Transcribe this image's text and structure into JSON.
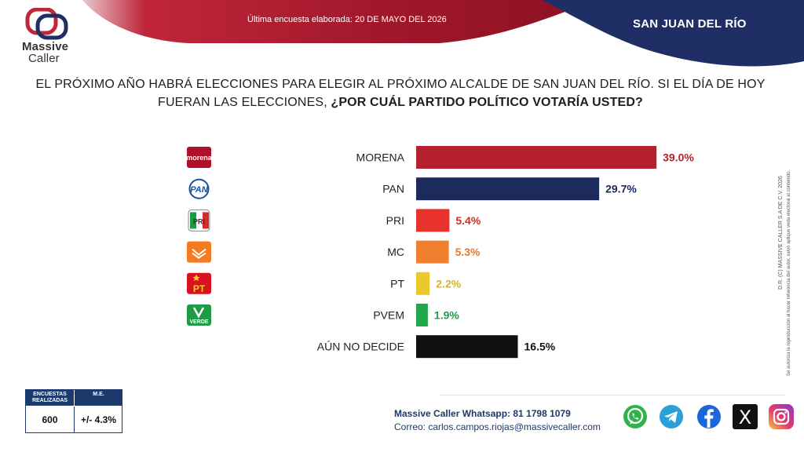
{
  "header": {
    "date_text": "Última encuesta elaborada: 20 DE MAYO DEL 2026",
    "city": "SAN JUAN DEL RÍO"
  },
  "logo": {
    "line1": "Massive",
    "line2": "Caller"
  },
  "question": {
    "part1": "EL PRÓXIMO AÑO HABRÁ ELECCIONES PARA ELEGIR AL PRÓXIMO ALCALDE DE SAN JUAN DEL RÍO. SI EL DÍA DE HOY FUERAN LAS ELECCIONES, ",
    "part2": "¿POR CUÁL PARTIDO POLÍTICO VOTARÍA USTED?"
  },
  "chart_data": {
    "type": "bar",
    "orientation": "horizontal",
    "categories": [
      "MORENA",
      "PAN",
      "PRI",
      "MC",
      "PT",
      "PVEM",
      "AÚN NO DECIDE"
    ],
    "values": [
      39.0,
      29.7,
      5.4,
      5.3,
      2.2,
      1.9,
      16.5
    ],
    "value_labels": [
      "39.0%",
      "29.7%",
      "5.4%",
      "5.3%",
      "2.2%",
      "1.9%",
      "16.5%"
    ],
    "colors": [
      "#b5202e",
      "#1c2a5c",
      "#e8322c",
      "#f08030",
      "#ecc92a",
      "#1ea84a",
      "#111111"
    ],
    "label_colors": [
      "#b5202e",
      "#1c2a5c",
      "#d12c25",
      "#e67a2f",
      "#d9b520",
      "#1f9a45",
      "#111111"
    ],
    "icons": [
      "morena-logo",
      "pan-logo",
      "pri-logo",
      "mc-logo",
      "pt-logo",
      "pvem-logo",
      ""
    ],
    "icon_texts": [
      "morena",
      "PAN",
      "PRI",
      "",
      "PT",
      "VERDE",
      ""
    ],
    "unit": "%"
  },
  "side_note": {
    "line1": "D.R. (C) MASSIVE CALLER S.A DE C.V. 2026",
    "line2": "Se autoriza la reproducción al hacer referencia del autor, salvo aplique veda electoral al contenido."
  },
  "stats_table": {
    "col1_header": "ENCUESTAS REALIZADAS",
    "col2_header": "M.E.",
    "col1_value": "600",
    "col2_value": "+/- 4.3%"
  },
  "contact": {
    "whatsapp": "Massive Caller Whatsapp: 81 1798 1079",
    "email": "Correo: carlos.campos.riojas@massivecaller.com"
  },
  "social": {
    "icons": [
      "whatsapp-icon",
      "telegram-icon",
      "facebook-icon",
      "x-icon",
      "instagram-icon"
    ],
    "x_glyph": "X"
  }
}
